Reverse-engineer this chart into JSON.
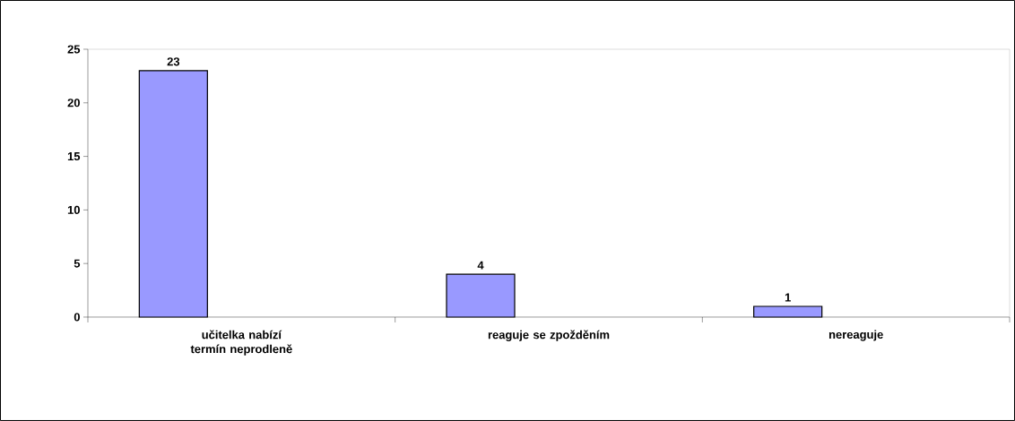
{
  "chart_data": {
    "type": "bar",
    "categories": [
      "učitelka nabízí termín neprodleně",
      "reaguje se zpožděním",
      "nereaguje"
    ],
    "values": [
      23,
      4,
      1
    ],
    "color": "#9999ff",
    "ylim": [
      0,
      25
    ],
    "yticks": [
      0,
      5,
      10,
      15,
      20,
      25
    ],
    "data_labels": true
  }
}
